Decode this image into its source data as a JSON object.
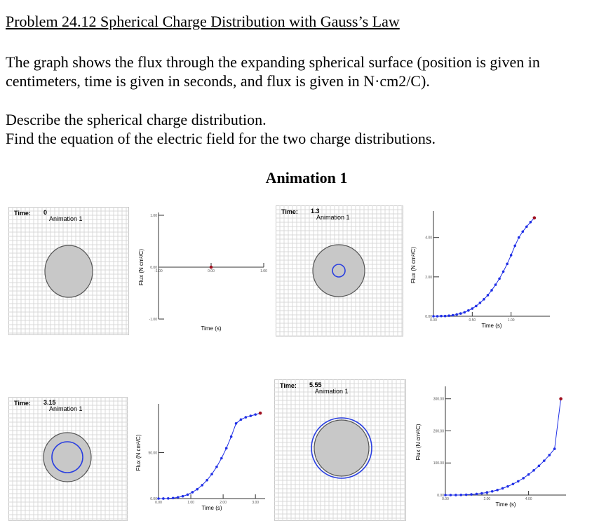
{
  "problem_title": "Problem 24.12 Spherical Charge Distribution with Gauss’s Law",
  "intro_line1": "The graph shows the flux through the expanding spherical surface (position is given in",
  "intro_line2": "centimeters, time is given in seconds, and flux is given in N·cm2/C).",
  "task_line1": "Describe the spherical charge distribution.",
  "task_line2": "Find the equation of the electric field for the two charge distributions.",
  "animation_heading": "Animation 1",
  "panels": [
    {
      "time_label": "Time:",
      "time_value": "0",
      "anim_label": "Animation 1"
    },
    {
      "time_label": "Time:",
      "time_value": "1.3",
      "anim_label": "Animation 1"
    },
    {
      "time_label": "Time:",
      "time_value": "3.15",
      "anim_label": "Animation 1"
    },
    {
      "time_label": "Time:",
      "time_value": "5.55",
      "anim_label": "Animation 1"
    }
  ],
  "colors": {
    "sphere_fill": "#c8c8c8",
    "gauss_surface": "#2a3fe0",
    "data_point": "#1f2fe6",
    "current_point": "#a01020",
    "grid": "#d8d8d8"
  },
  "chart_data": [
    {
      "type": "scatter",
      "xlabel": "Time (s)",
      "ylabel": "Flux (N cm²/C)",
      "xlim": [
        -1,
        1
      ],
      "ylim": [
        -1,
        1
      ],
      "xticks": [
        "-1.00",
        "0.00",
        "1.00"
      ],
      "yticks": [
        "1.00",
        "0.00",
        "-1.00"
      ],
      "x": [
        0
      ],
      "y": [
        0
      ]
    },
    {
      "type": "scatter",
      "xlabel": "Time (s)",
      "ylabel": "Flux (N cm²/C)",
      "xlim": [
        0,
        1.5
      ],
      "ylim": [
        0,
        5.2
      ],
      "xticks": [
        "0.00",
        "0.50",
        "1.00"
      ],
      "yticks": [
        "4.00",
        "2.00",
        "0.00"
      ],
      "x": [
        0.0,
        0.05,
        0.1,
        0.15,
        0.2,
        0.25,
        0.3,
        0.35,
        0.4,
        0.45,
        0.5,
        0.55,
        0.6,
        0.65,
        0.7,
        0.75,
        0.8,
        0.85,
        0.9,
        0.95,
        1.0,
        1.05,
        1.1,
        1.15,
        1.2,
        1.25,
        1.3
      ],
      "y": [
        0.0,
        0.0,
        0.01,
        0.01,
        0.03,
        0.05,
        0.09,
        0.14,
        0.2,
        0.29,
        0.39,
        0.52,
        0.68,
        0.86,
        1.07,
        1.32,
        1.6,
        1.91,
        2.27,
        2.66,
        3.1,
        3.58,
        4.0,
        4.3,
        4.55,
        4.78,
        5.0
      ]
    },
    {
      "type": "scatter",
      "xlabel": "Time (s)",
      "ylabel": "Flux (N cm²/C)",
      "xlim": [
        0,
        3.3
      ],
      "ylim": [
        0,
        100
      ],
      "xticks": [
        "0.00",
        "1.00",
        "2.00",
        "3.00"
      ],
      "yticks": [
        "50.00",
        "0.00"
      ],
      "x": [
        0.0,
        0.15,
        0.3,
        0.45,
        0.6,
        0.75,
        0.9,
        1.05,
        1.2,
        1.35,
        1.5,
        1.65,
        1.8,
        1.95,
        2.1,
        2.25,
        2.4,
        2.55,
        2.7,
        2.85,
        3.0,
        3.15
      ],
      "y": [
        0.0,
        0.02,
        0.16,
        0.54,
        1.28,
        2.5,
        4.3,
        6.9,
        10.2,
        14.6,
        20.0,
        26.6,
        34.5,
        43.9,
        54.8,
        67.4,
        81.8,
        86.0,
        88.5,
        90.0,
        91.5,
        93.0
      ]
    },
    {
      "type": "scatter",
      "xlabel": "Time (s)",
      "ylabel": "Flux (N cm²/C)",
      "xlim": [
        0,
        5.8
      ],
      "ylim": [
        0,
        330
      ],
      "xticks": [
        "0.00",
        "2.00",
        "4.00"
      ],
      "yticks": [
        "300.00",
        "200.00",
        "100.00",
        "0.00"
      ],
      "x": [
        0.0,
        0.25,
        0.5,
        0.75,
        1.0,
        1.25,
        1.5,
        1.75,
        2.0,
        2.25,
        2.5,
        2.75,
        3.0,
        3.25,
        3.5,
        3.75,
        4.0,
        4.25,
        4.5,
        4.75,
        5.0,
        5.25,
        5.55
      ],
      "y": [
        0.0,
        0.0,
        0.1,
        0.4,
        1.0,
        2.0,
        3.4,
        5.4,
        8.0,
        11.4,
        15.6,
        20.8,
        27.0,
        34.3,
        42.9,
        52.7,
        64.0,
        76.8,
        91.1,
        107.0,
        124.7,
        144.0,
        300.0
      ]
    }
  ]
}
